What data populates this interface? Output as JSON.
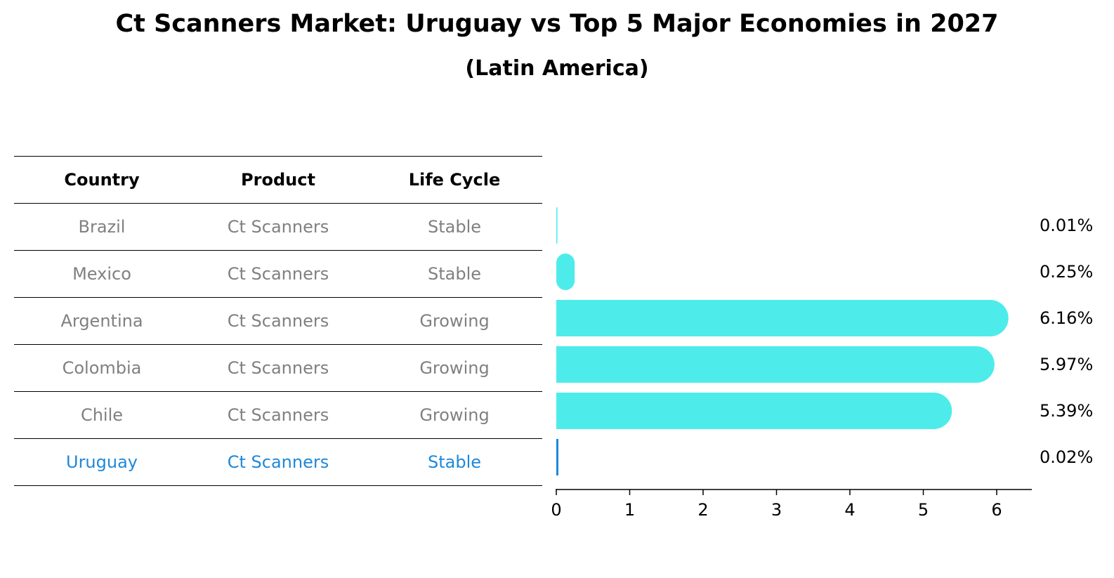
{
  "title": "Ct Scanners Market: Uruguay vs Top 5 Major Economies in 2027",
  "subtitle": "(Latin America)",
  "table": {
    "headers": [
      "Country",
      "Product",
      "Life Cycle"
    ],
    "rows": [
      [
        "Brazil",
        "Ct Scanners",
        "Stable"
      ],
      [
        "Mexico",
        "Ct Scanners",
        "Stable"
      ],
      [
        "Argentina",
        "Ct Scanners",
        "Growing"
      ],
      [
        "Colombia",
        "Ct Scanners",
        "Growing"
      ],
      [
        "Chile",
        "Ct Scanners",
        "Growing"
      ],
      [
        "Uruguay",
        "Ct Scanners",
        "Stable"
      ]
    ],
    "highlight_row": 5
  },
  "colors": {
    "bar": "#4deceb",
    "highlight": "#1f88d9",
    "muted_text": "#808080"
  },
  "chart_data": {
    "type": "bar",
    "orientation": "horizontal",
    "categories": [
      "Brazil",
      "Mexico",
      "Argentina",
      "Colombia",
      "Chile",
      "Uruguay"
    ],
    "values": [
      0.01,
      0.25,
      6.16,
      5.97,
      5.39,
      0.02
    ],
    "value_labels": [
      "0.01%",
      "0.25%",
      "6.16%",
      "5.97%",
      "5.39%",
      "0.02%"
    ],
    "xticks": [
      "0",
      "1",
      "2",
      "3",
      "4",
      "5",
      "6"
    ],
    "xlim": [
      0,
      6.45
    ],
    "highlight_category": "Uruguay",
    "grid": false
  }
}
